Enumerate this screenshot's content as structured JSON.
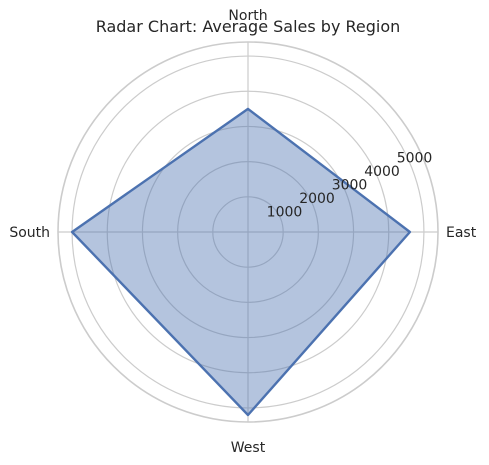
{
  "chart_data": {
    "type": "radar",
    "title": "Radar Chart: Average Sales by Region",
    "categories": [
      "East",
      "North",
      "South",
      "West"
    ],
    "values": [
      4600,
      3500,
      5000,
      5200
    ],
    "rlim": [
      0,
      5400
    ],
    "rticks": [
      1000,
      2000,
      3000,
      4000,
      5000
    ],
    "rtick_labels": [
      "1000",
      "2000",
      "3000",
      "4000",
      "5000"
    ],
    "grid": true,
    "colors": {
      "line": "#4c72b0",
      "fill": "#4c72b0",
      "grid": "#cccccc"
    }
  }
}
